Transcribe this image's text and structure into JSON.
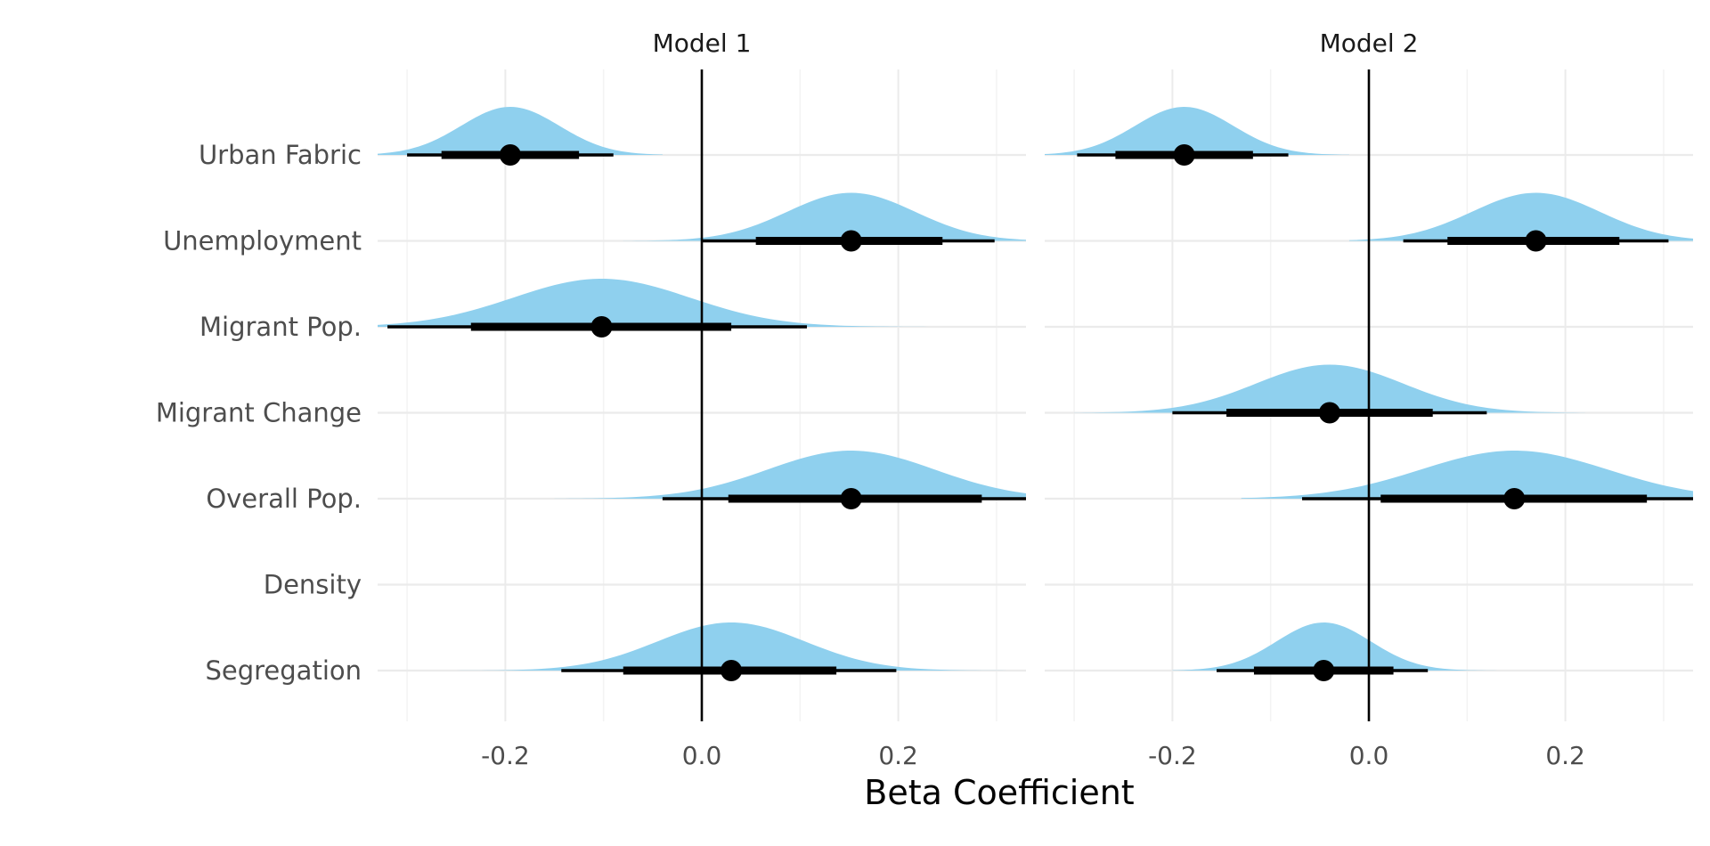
{
  "chart_data": {
    "type": "interval",
    "xlabel": "Beta Coefficient",
    "xlim": [
      -0.33,
      0.33
    ],
    "x_ticks": [
      -0.2,
      0.0,
      0.2
    ],
    "x_tick_labels": [
      "-0.2",
      "0.0",
      "0.2"
    ],
    "x_minor_ticks": [
      -0.3,
      -0.1,
      0.1,
      0.3
    ],
    "reference_line": 0,
    "colors": {
      "density": "#8fd0ee",
      "interval": "#000000",
      "grid": "#ebebeb"
    },
    "categories": [
      "Urban Fabric",
      "Unemployment",
      "Migrant Pop.",
      "Migrant Change",
      "Overall Pop.",
      "Density",
      "Segregation"
    ],
    "panels": [
      {
        "name": "Model 1",
        "estimates": [
          {
            "term": "Urban Fabric",
            "median": -0.195,
            "lo66": -0.265,
            "hi66": -0.125,
            "lo95": -0.3,
            "hi95": -0.09,
            "sd": 0.05,
            "min": -0.33,
            "max": -0.04
          },
          {
            "term": "Unemployment",
            "median": 0.152,
            "lo66": 0.055,
            "hi66": 0.245,
            "lo95": 0.0,
            "hi95": 0.298,
            "sd": 0.065,
            "min": -0.08,
            "max": 0.33
          },
          {
            "term": "Migrant Pop.",
            "median": -0.102,
            "lo66": -0.235,
            "hi66": 0.03,
            "lo95": -0.32,
            "hi95": 0.107,
            "sd": 0.09,
            "min": -0.33,
            "max": 0.25
          },
          {
            "term": "Overall Pop.",
            "median": 0.152,
            "lo66": 0.027,
            "hi66": 0.285,
            "lo95": -0.04,
            "hi95": 0.33,
            "sd": 0.085,
            "min": -0.15,
            "max": 0.33
          },
          {
            "term": "Segregation",
            "median": 0.03,
            "lo66": -0.08,
            "hi66": 0.137,
            "lo95": -0.143,
            "hi95": 0.198,
            "sd": 0.075,
            "min": -0.25,
            "max": 0.33
          }
        ]
      },
      {
        "name": "Model 2",
        "estimates": [
          {
            "term": "Urban Fabric",
            "median": -0.188,
            "lo66": -0.258,
            "hi66": -0.118,
            "lo95": -0.297,
            "hi95": -0.082,
            "sd": 0.05,
            "min": -0.33,
            "max": -0.02
          },
          {
            "term": "Unemployment",
            "median": 0.17,
            "lo66": 0.08,
            "hi66": 0.255,
            "lo95": 0.035,
            "hi95": 0.305,
            "sd": 0.065,
            "min": -0.02,
            "max": 0.33
          },
          {
            "term": "Migrant Change",
            "median": -0.04,
            "lo66": -0.145,
            "hi66": 0.065,
            "lo95": -0.2,
            "hi95": 0.12,
            "sd": 0.075,
            "min": -0.3,
            "max": 0.22
          },
          {
            "term": "Overall Pop.",
            "median": 0.148,
            "lo66": 0.012,
            "hi66": 0.283,
            "lo95": -0.068,
            "hi95": 0.33,
            "sd": 0.095,
            "min": -0.13,
            "max": 0.33
          },
          {
            "term": "Segregation",
            "median": -0.046,
            "lo66": -0.117,
            "hi66": 0.025,
            "lo95": -0.155,
            "hi95": 0.06,
            "sd": 0.048,
            "min": -0.2,
            "max": 0.15
          }
        ]
      }
    ]
  }
}
